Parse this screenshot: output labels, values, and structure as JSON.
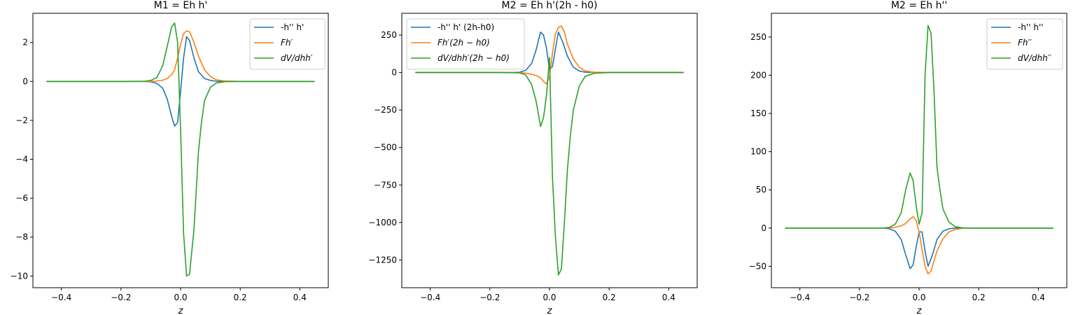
{
  "chart_data": [
    {
      "type": "line",
      "title": "M1 = Eh h'",
      "xlabel": "z",
      "ylabel": "",
      "xlim": [
        -0.4955,
        0.4955
      ],
      "ylim": [
        -10.6,
        3.5
      ],
      "xticks": [
        -0.4,
        -0.2,
        0.0,
        0.2,
        0.4
      ],
      "xtick_labels": [
        "−0.4",
        "−0.2",
        "0.0",
        "0.2",
        "0.4"
      ],
      "yticks": [
        -10,
        -8,
        -6,
        -4,
        -2,
        0,
        2
      ],
      "ytick_labels": [
        "−10",
        "−8",
        "−6",
        "−4",
        "−2",
        "0",
        "2"
      ],
      "legend_position": "upper right",
      "series": [
        {
          "name": "-h'' h'",
          "color": "#1f77b4",
          "x": [
            -0.45,
            -0.2,
            -0.12,
            -0.1,
            -0.08,
            -0.06,
            -0.045,
            -0.03,
            -0.02,
            -0.01,
            0.0,
            0.01,
            0.02,
            0.03,
            0.045,
            0.06,
            0.08,
            0.1,
            0.12,
            0.2,
            0.45
          ],
          "y": [
            0,
            0,
            0,
            -0.02,
            -0.1,
            -0.35,
            -0.9,
            -1.8,
            -2.3,
            -2.1,
            -0.5,
            1.2,
            2.3,
            2.1,
            1.2,
            0.5,
            0.15,
            0.05,
            0.01,
            0,
            0
          ]
        },
        {
          "name": "Fh′",
          "color": "#ff7f0e",
          "x": [
            -0.45,
            -0.2,
            -0.12,
            -0.1,
            -0.08,
            -0.06,
            -0.045,
            -0.03,
            -0.02,
            -0.01,
            0.0,
            0.01,
            0.02,
            0.03,
            0.045,
            0.06,
            0.08,
            0.1,
            0.12,
            0.15,
            0.2,
            0.45
          ],
          "y": [
            0,
            0,
            0,
            0,
            0.02,
            0.06,
            0.15,
            0.35,
            0.6,
            1.2,
            1.9,
            2.45,
            2.6,
            2.55,
            2.0,
            1.3,
            0.6,
            0.25,
            0.08,
            0.02,
            0,
            0
          ]
        },
        {
          "name": "dV/dhh′",
          "color": "#2ca02c",
          "x": [
            -0.45,
            -0.2,
            -0.12,
            -0.1,
            -0.08,
            -0.06,
            -0.045,
            -0.03,
            -0.02,
            -0.01,
            0.0,
            0.01,
            0.02,
            0.03,
            0.045,
            0.06,
            0.07,
            0.08,
            0.1,
            0.12,
            0.15,
            0.2,
            0.45
          ],
          "y": [
            0,
            0,
            0.01,
            0.05,
            0.2,
            0.8,
            1.8,
            2.8,
            3.0,
            2.0,
            -2.5,
            -7.8,
            -10.0,
            -9.9,
            -7.6,
            -3.6,
            -2.1,
            -1.0,
            -0.3,
            -0.08,
            -0.01,
            0,
            0
          ]
        }
      ]
    },
    {
      "type": "line",
      "title": "M2 = Eh h'(2h - h0)",
      "xlabel": "z",
      "ylabel": "",
      "xlim": [
        -0.4955,
        0.4955
      ],
      "ylim": [
        -1435,
        395
      ],
      "xticks": [
        -0.4,
        -0.2,
        0.0,
        0.2,
        0.4
      ],
      "xtick_labels": [
        "−0.4",
        "−0.2",
        "0.0",
        "0.2",
        "0.4"
      ],
      "yticks": [
        -1250,
        -1000,
        -750,
        -500,
        -250,
        0,
        250
      ],
      "ytick_labels": [
        "−1250",
        "−1000",
        "−750",
        "−500",
        "−250",
        "0",
        "250"
      ],
      "legend_position": "upper left",
      "series": [
        {
          "name": "-h'' h' (2h-h0)",
          "color": "#1f77b4",
          "x": [
            -0.45,
            -0.2,
            -0.12,
            -0.1,
            -0.08,
            -0.06,
            -0.045,
            -0.03,
            -0.02,
            -0.01,
            0.0,
            0.01,
            0.02,
            0.03,
            0.045,
            0.06,
            0.08,
            0.1,
            0.12,
            0.2,
            0.45
          ],
          "y": [
            0,
            0,
            0,
            2,
            15,
            60,
            150,
            270,
            250,
            160,
            20,
            40,
            160,
            270,
            200,
            110,
            35,
            10,
            2,
            0,
            0
          ]
        },
        {
          "name": "Fh′(2h − h0)",
          "color": "#ff7f0e",
          "x": [
            -0.45,
            -0.2,
            -0.12,
            -0.1,
            -0.08,
            -0.06,
            -0.045,
            -0.03,
            -0.02,
            -0.01,
            0.0,
            0.01,
            0.02,
            0.03,
            0.04,
            0.05,
            0.06,
            0.08,
            0.1,
            0.12,
            0.15,
            0.2,
            0.45
          ],
          "y": [
            0,
            0,
            0,
            -1,
            -4,
            -12,
            -20,
            -35,
            -60,
            -75,
            -30,
            130,
            260,
            300,
            310,
            270,
            190,
            90,
            35,
            10,
            2,
            0,
            0
          ]
        },
        {
          "name": "dV/dhh′(2h − h0)",
          "color": "#2ca02c",
          "x": [
            -0.45,
            -0.2,
            -0.12,
            -0.1,
            -0.08,
            -0.06,
            -0.045,
            -0.03,
            -0.02,
            -0.01,
            0.0,
            0.01,
            0.02,
            0.03,
            0.04,
            0.05,
            0.06,
            0.07,
            0.08,
            0.1,
            0.12,
            0.15,
            0.2,
            0.45
          ],
          "y": [
            0,
            0,
            -1,
            -3,
            -15,
            -80,
            -190,
            -360,
            -300,
            -150,
            100,
            -700,
            -1100,
            -1350,
            -1310,
            -1000,
            -650,
            -420,
            -250,
            -90,
            -25,
            -5,
            0,
            0
          ]
        }
      ]
    },
    {
      "type": "line",
      "title": "M2 = Eh h''",
      "xlabel": "z",
      "ylabel": "",
      "xlim": [
        -0.4955,
        0.4955
      ],
      "ylim": [
        -78,
        281
      ],
      "xticks": [
        -0.4,
        -0.2,
        0.0,
        0.2,
        0.4
      ],
      "xtick_labels": [
        "−0.4",
        "−0.2",
        "0.0",
        "0.2",
        "0.4"
      ],
      "yticks": [
        -50,
        0,
        50,
        100,
        150,
        200,
        250
      ],
      "ytick_labels": [
        "−50",
        "0",
        "50",
        "100",
        "150",
        "200",
        "250"
      ],
      "legend_position": "upper right",
      "series": [
        {
          "name": "-h'' h''",
          "color": "#1f77b4",
          "x": [
            -0.45,
            -0.2,
            -0.12,
            -0.1,
            -0.08,
            -0.06,
            -0.045,
            -0.03,
            -0.02,
            -0.01,
            0.0,
            0.01,
            0.02,
            0.03,
            0.045,
            0.06,
            0.08,
            0.1,
            0.12,
            0.2,
            0.45
          ],
          "y": [
            0,
            0,
            0,
            -1,
            -4,
            -15,
            -35,
            -53,
            -48,
            -25,
            -5,
            -5,
            -30,
            -50,
            -35,
            -15,
            -4,
            -1,
            0,
            0,
            0
          ]
        },
        {
          "name": "Fh′′",
          "color": "#ff7f0e",
          "x": [
            -0.45,
            -0.2,
            -0.12,
            -0.1,
            -0.08,
            -0.06,
            -0.045,
            -0.03,
            -0.02,
            -0.01,
            0.0,
            0.01,
            0.02,
            0.03,
            0.04,
            0.05,
            0.06,
            0.08,
            0.1,
            0.12,
            0.15,
            0.2,
            0.45
          ],
          "y": [
            0,
            0,
            0,
            0,
            1,
            3,
            6,
            12,
            15,
            10,
            -5,
            -28,
            -50,
            -60,
            -56,
            -43,
            -30,
            -14,
            -5,
            -2,
            0,
            0,
            0
          ]
        },
        {
          "name": "dV/dhh′′",
          "color": "#2ca02c",
          "x": [
            -0.45,
            -0.2,
            -0.12,
            -0.1,
            -0.08,
            -0.06,
            -0.045,
            -0.03,
            -0.02,
            -0.01,
            0.0,
            0.01,
            0.02,
            0.03,
            0.04,
            0.05,
            0.06,
            0.07,
            0.08,
            0.1,
            0.12,
            0.15,
            0.2,
            0.45
          ],
          "y": [
            0,
            0,
            0,
            1,
            5,
            20,
            50,
            72,
            62,
            30,
            5,
            20,
            200,
            265,
            255,
            180,
            80,
            50,
            25,
            8,
            2,
            0,
            0,
            0
          ]
        }
      ]
    }
  ]
}
